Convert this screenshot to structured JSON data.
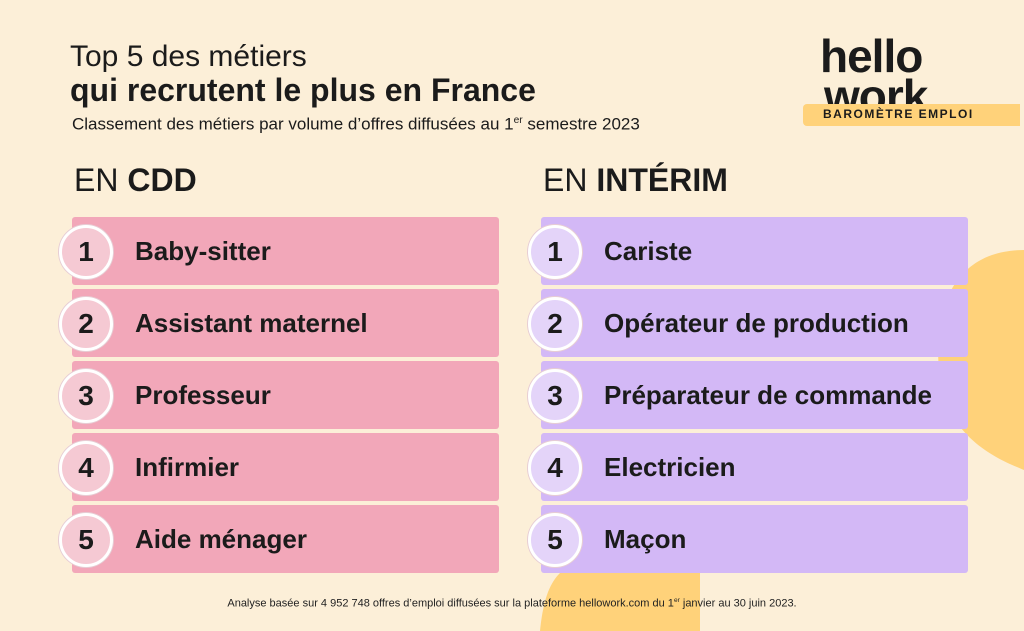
{
  "header": {
    "title_line1": "Top 5 des métiers",
    "title_line2": "qui recrutent le plus en France",
    "subtitle_pre": "Classement des métiers par volume d’offres diffusées au 1",
    "subtitle_sup": "er",
    "subtitle_post": " semestre 2023"
  },
  "logo": {
    "line1": "hello",
    "line2": "work",
    "tag": "BAROMÈTRE EMPLOI"
  },
  "columns": [
    {
      "prefix": "EN",
      "label": "CDD",
      "color": "#f2a7b9",
      "items": [
        {
          "rank": "1",
          "job": "Baby-sitter"
        },
        {
          "rank": "2",
          "job": "Assistant maternel"
        },
        {
          "rank": "3",
          "job": "Professeur"
        },
        {
          "rank": "4",
          "job": "Infirmier"
        },
        {
          "rank": "5",
          "job": "Aide ménager"
        }
      ]
    },
    {
      "prefix": "EN",
      "label": "INTÉRIM",
      "color": "#d3b8f6",
      "items": [
        {
          "rank": "1",
          "job": "Cariste"
        },
        {
          "rank": "2",
          "job": "Opérateur de production"
        },
        {
          "rank": "3",
          "job": "Préparateur de commande"
        },
        {
          "rank": "4",
          "job": "Electricien"
        },
        {
          "rank": "5",
          "job": "Maçon"
        }
      ]
    }
  ],
  "footnote": {
    "pre": "Analyse basée sur 4 952 748 offres d’emploi diffusées sur la plateforme hellowork.com du 1",
    "sup": "er",
    "post": " janvier au 30 juin 2023."
  },
  "colors": {
    "background": "#fcefd8",
    "accent": "#ffd27a"
  }
}
